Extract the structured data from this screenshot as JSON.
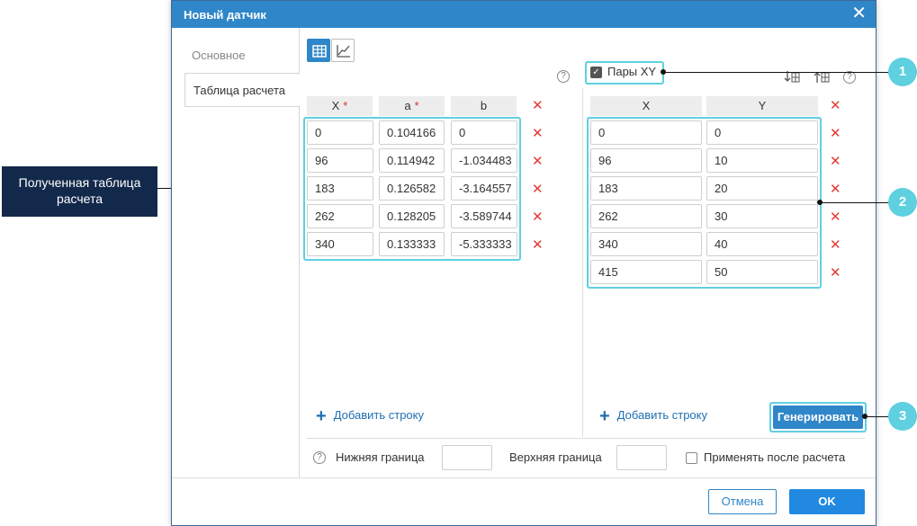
{
  "dialog": {
    "title": "Новый датчик",
    "close_glyph": "✕"
  },
  "tabs": [
    {
      "label": "Основное"
    },
    {
      "label": "Таблица расчета"
    }
  ],
  "toolbar": {
    "table_view_icon": "table-icon",
    "chart_view_icon": "chart-icon",
    "active_view": "table"
  },
  "calc_table": {
    "headers": [
      "X",
      "a",
      "b"
    ],
    "required_mark": "*",
    "rows": [
      [
        "0",
        "0.104166",
        "0"
      ],
      [
        "96",
        "0.114942",
        "-1.034483"
      ],
      [
        "183",
        "0.126582",
        "-3.164557"
      ],
      [
        "262",
        "0.128205",
        "-3.589744"
      ],
      [
        "340",
        "0.133333",
        "-5.333333"
      ]
    ]
  },
  "xy_pairs": {
    "checkbox_label": "Пары XY",
    "checked": true,
    "headers": [
      "X",
      "Y"
    ],
    "rows": [
      [
        "0",
        "0"
      ],
      [
        "96",
        "10"
      ],
      [
        "183",
        "20"
      ],
      [
        "262",
        "30"
      ],
      [
        "340",
        "40"
      ],
      [
        "415",
        "50"
      ]
    ]
  },
  "help_glyph": "?",
  "delete_glyph": "✕",
  "add_row_plus": "+",
  "add_row_label": "Добавить строку",
  "generate_label": "Генерировать",
  "bounds": {
    "lower_label": "Нижняя граница",
    "lower_value": "",
    "upper_label": "Верхняя граница",
    "upper_value": "",
    "apply_label": "Применять после расчета",
    "apply_checked": false
  },
  "footer": {
    "cancel_label": "Отмена",
    "ok_label": "OK"
  },
  "annotations": {
    "left_callout": "Полученная таблица расчета",
    "badge_1": "1",
    "badge_2": "2",
    "badge_3": "3",
    "accent_color": "#5ed0e0",
    "callout_bg": "#13294b"
  }
}
